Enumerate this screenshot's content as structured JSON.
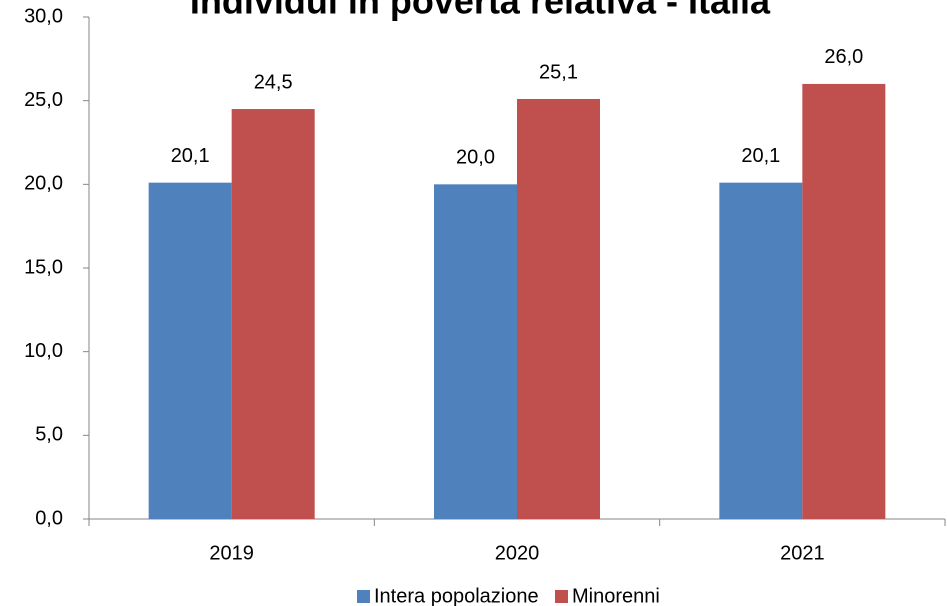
{
  "chart_data": {
    "type": "bar",
    "title": "Individui in povertà relativa - Italia",
    "categories": [
      "2019",
      "2020",
      "2021"
    ],
    "series": [
      {
        "name": "Intera popolazione",
        "color": "#4f81bd",
        "values": [
          20.1,
          20.0,
          20.1
        ],
        "value_labels": [
          "20,1",
          "20,0",
          "20,1"
        ]
      },
      {
        "name": "Minorenni",
        "color": "#c0504d",
        "values": [
          24.5,
          25.1,
          26.0
        ],
        "value_labels": [
          "24,5",
          "25,1",
          "26,0"
        ]
      }
    ],
    "ylim": [
      0,
      30
    ],
    "yticks": [
      {
        "value": 0,
        "label": "0,0"
      },
      {
        "value": 5,
        "label": "5,0"
      },
      {
        "value": 10,
        "label": "10,0"
      },
      {
        "value": 15,
        "label": "15,0"
      },
      {
        "value": 20,
        "label": "20,0"
      },
      {
        "value": 25,
        "label": "25,0"
      },
      {
        "value": 30,
        "label": "30,0"
      }
    ],
    "grid": false,
    "legend": "bottom"
  }
}
